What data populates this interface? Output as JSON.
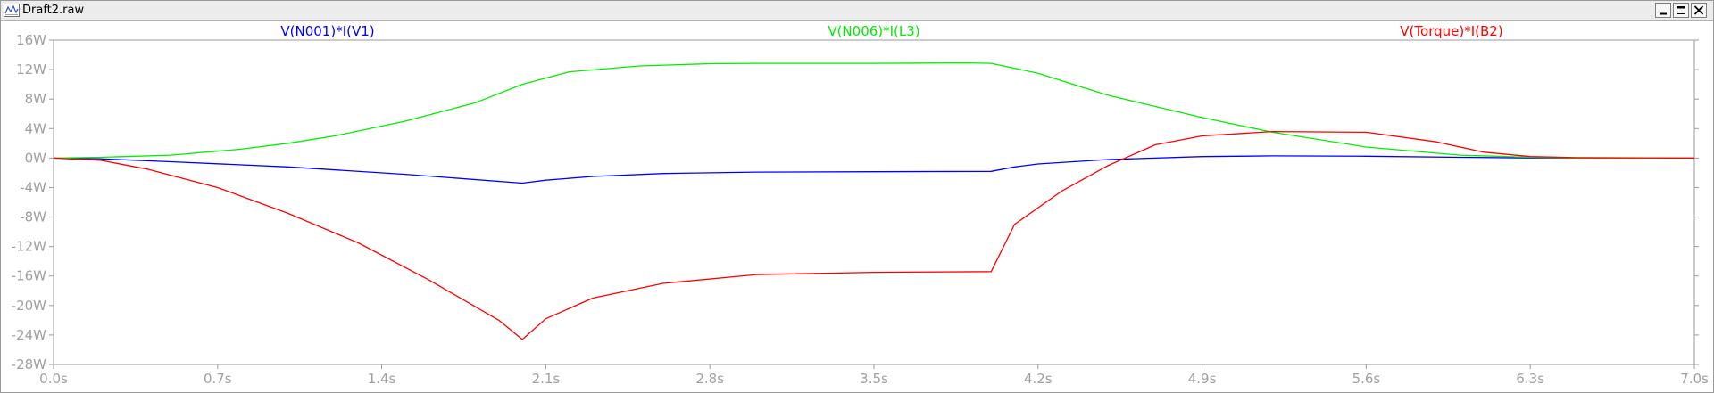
{
  "window": {
    "title": "Draft2.raw",
    "icon": "waveform-viewer-icon",
    "controls": [
      "minimize-icon",
      "maximize-icon",
      "close-icon"
    ]
  },
  "chart_data": {
    "type": "line",
    "title": "",
    "xlabel": "",
    "ylabel": "",
    "xlim": [
      0,
      7.0
    ],
    "ylim": [
      -28,
      16
    ],
    "x_ticks": [
      0,
      0.7,
      1.4,
      2.1,
      2.8,
      3.5,
      4.2,
      4.9,
      5.6,
      6.3,
      7.0
    ],
    "x_tick_labels": [
      "0.0s",
      "0.7s",
      "1.4s",
      "2.1s",
      "2.8s",
      "3.5s",
      "4.2s",
      "4.9s",
      "5.6s",
      "6.3s",
      "7.0s"
    ],
    "y_ticks": [
      16,
      12,
      8,
      4,
      0,
      -4,
      -8,
      -12,
      -16,
      -20,
      -24,
      -28
    ],
    "y_tick_labels": [
      "16W",
      "12W",
      "8W",
      "4W",
      "0W",
      "-4W",
      "-8W",
      "-12W",
      "-16W",
      "-20W",
      "-24W",
      "-28W"
    ],
    "grid": false,
    "legend": "top",
    "axis_color": "#9a9a9a",
    "tick_label_color": "#a0a0a0",
    "series": [
      {
        "name": "V(N001)*I(V1)",
        "color": "#0000ff",
        "x": [
          0,
          0.2,
          0.5,
          1.0,
          1.5,
          2.0,
          2.1,
          2.3,
          2.6,
          3.0,
          3.5,
          4.0,
          4.1,
          4.2,
          4.5,
          4.9,
          5.2,
          5.6,
          6.0,
          6.3,
          6.5,
          7.0
        ],
        "y": [
          0,
          -0.1,
          -0.5,
          -1.2,
          -2.2,
          -3.4,
          -3.0,
          -2.5,
          -2.1,
          -1.9,
          -1.85,
          -1.8,
          -1.2,
          -0.8,
          -0.2,
          0.2,
          0.3,
          0.25,
          0.1,
          0.02,
          0,
          0
        ]
      },
      {
        "name": "V(N006)*I(L3)",
        "color": "#00ee00",
        "x": [
          0,
          0.2,
          0.5,
          0.8,
          1.0,
          1.2,
          1.5,
          1.8,
          2.0,
          2.2,
          2.5,
          2.8,
          3.0,
          3.5,
          3.9,
          4.0,
          4.2,
          4.5,
          4.9,
          5.2,
          5.6,
          6.0,
          6.3,
          6.5,
          7.0
        ],
        "y": [
          0,
          0.1,
          0.4,
          1.2,
          2.0,
          3.0,
          5.0,
          7.5,
          10.0,
          11.7,
          12.5,
          12.8,
          12.85,
          12.85,
          12.9,
          12.85,
          11.5,
          8.5,
          5.5,
          3.5,
          1.5,
          0.4,
          0.1,
          0,
          0
        ]
      },
      {
        "name": "V(Torque)*I(B2)",
        "color": "#ff0000",
        "x": [
          0,
          0.2,
          0.4,
          0.7,
          1.0,
          1.3,
          1.6,
          1.9,
          2.0,
          2.1,
          2.3,
          2.6,
          3.0,
          3.5,
          4.0,
          4.1,
          4.3,
          4.5,
          4.7,
          4.9,
          5.2,
          5.6,
          5.9,
          6.1,
          6.3,
          6.5,
          7.0
        ],
        "y": [
          0,
          -0.3,
          -1.5,
          -4.0,
          -7.5,
          -11.5,
          -16.5,
          -22.0,
          -24.6,
          -21.8,
          -19.0,
          -17.0,
          -15.8,
          -15.5,
          -15.4,
          -9.0,
          -4.5,
          -1.0,
          1.8,
          3.0,
          3.6,
          3.5,
          2.2,
          0.8,
          0.2,
          0.05,
          0
        ]
      }
    ]
  }
}
